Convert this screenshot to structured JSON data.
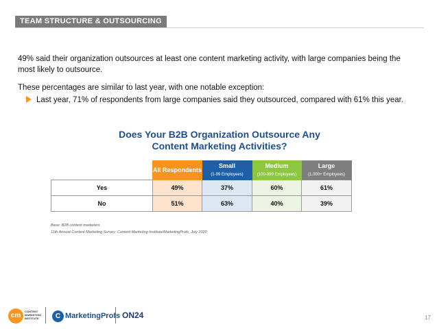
{
  "section": {
    "label": "TEAM STRUCTURE & OUTSOURCING"
  },
  "intro": {
    "paragraph1": "49% said their organization outsources at least one content marketing activity, with large companies being the most likely to outsource.",
    "paragraph2": "These percentages are similar to last year, with one notable exception:",
    "bullet": "Last year, 71% of respondents from large companies said they outsourced, compared with 61% this year."
  },
  "chart_title": {
    "line1": "Does Your B2B Organization Outsource Any",
    "line2": "Content Marketing Activities?"
  },
  "chart_data": {
    "type": "table",
    "columns": [
      {
        "label": "All Respondents",
        "sub": "",
        "color": "#f7941d"
      },
      {
        "label": "Small",
        "sub": "(1-99 Employees)",
        "color": "#1f5fa8"
      },
      {
        "label": "Medium",
        "sub": "(100-999 Employees)",
        "color": "#8dc63f"
      },
      {
        "label": "Large",
        "sub": "(1,000+ Employees)",
        "color": "#7f7f7f"
      }
    ],
    "rows": [
      {
        "label": "Yes",
        "values": [
          "49%",
          "37%",
          "60%",
          "61%"
        ]
      },
      {
        "label": "No",
        "values": [
          "51%",
          "63%",
          "40%",
          "39%"
        ]
      }
    ]
  },
  "notes": {
    "base": "Base: B2B content marketers.",
    "source": "11th Annual Content Marketing Survey: Content Marketing Institute/MarketingProfs, July 2020"
  },
  "footer": {
    "cmi_mark": "cm",
    "cmi_text": "CONTENT MARKETING INSTITUTE",
    "mp_icon": "C",
    "mp_name": "MarketingProfs",
    "on24": "ON24",
    "page": "17"
  }
}
